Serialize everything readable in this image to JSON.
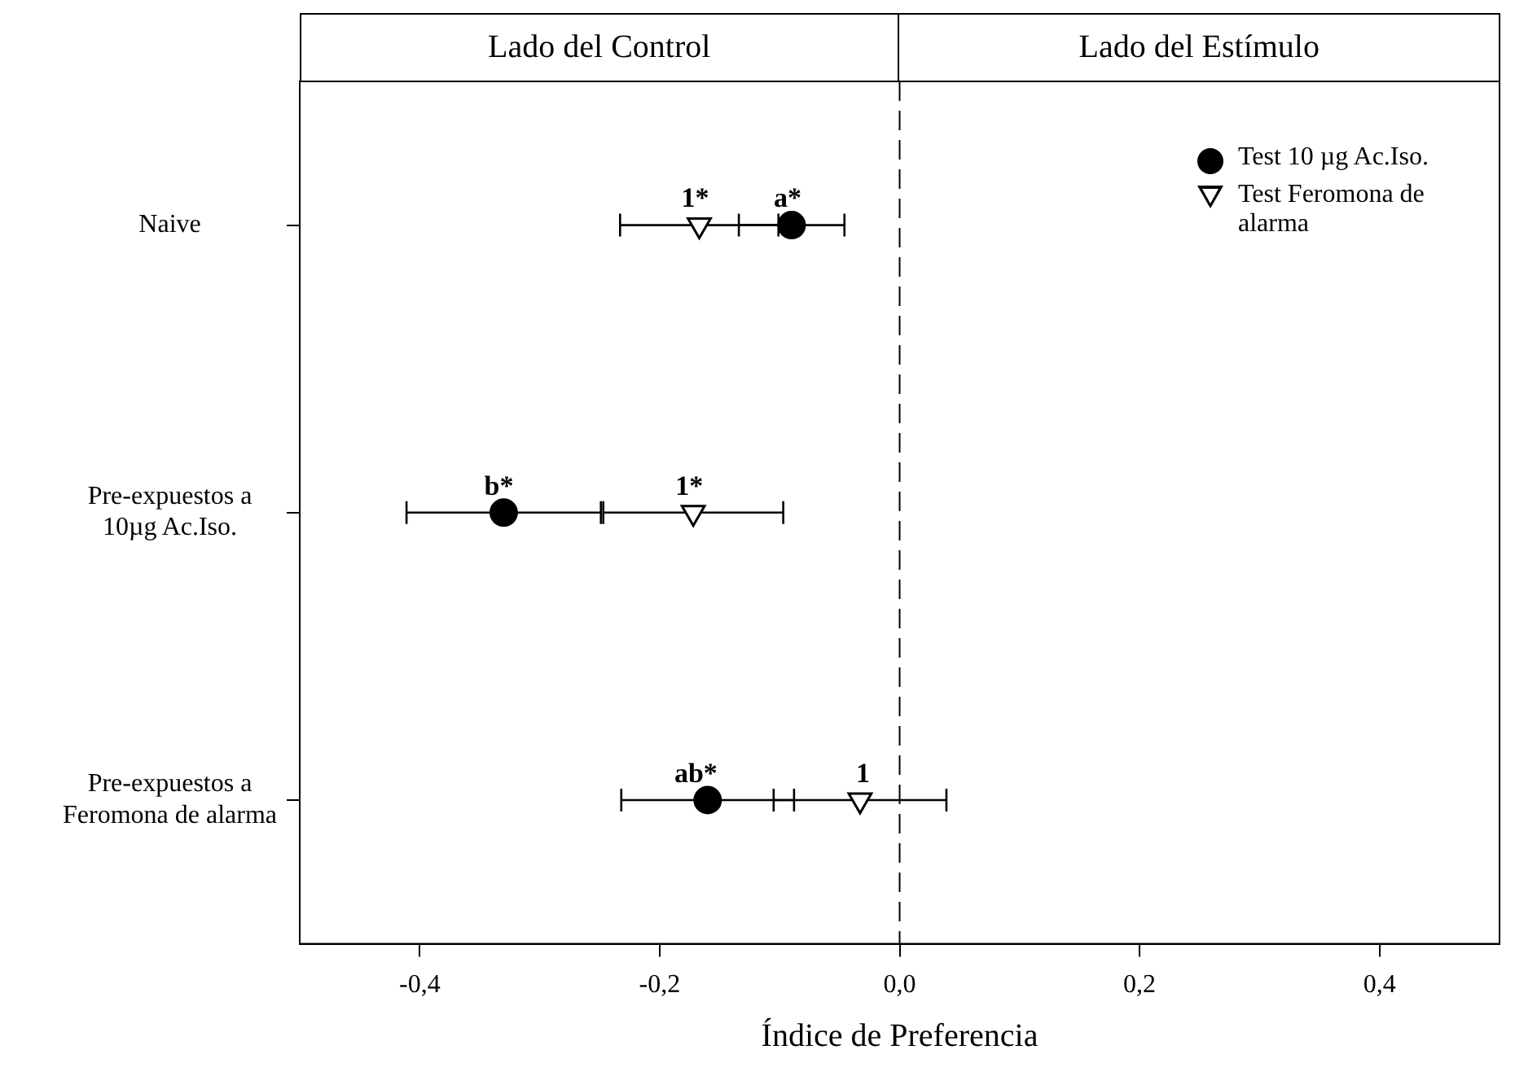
{
  "chart_data": {
    "type": "scatter",
    "orientation": "horizontal",
    "xlabel": "Índice de Preferencia",
    "categories": [
      "Naive",
      "Pre-expuestos a\n10µg Ac.Iso.",
      "Pre-expuestos a\nFeromona de alarma"
    ],
    "series": [
      {
        "name": "Test 10 µg Ac.Iso.",
        "color": "#000000",
        "marker": "circle",
        "values": [
          -0.09,
          -0.33,
          -0.16
        ],
        "errors": [
          0.044,
          0.081,
          0.072
        ]
      },
      {
        "name": "Test Feromona de alarma",
        "color": "#000000",
        "marker": "triangle",
        "values": [
          -0.167,
          -0.172,
          -0.033
        ],
        "errors": [
          0.066,
          0.075,
          0.072
        ]
      }
    ],
    "xlim": [
      -0.5,
      0.5
    ],
    "xticks": [
      {
        "value": -0.4,
        "label": "-0,4"
      },
      {
        "value": -0.2,
        "label": "-0,2"
      },
      {
        "value": 0,
        "label": "0,0"
      },
      {
        "value": 0.2,
        "label": "0,2"
      },
      {
        "value": 0.4,
        "label": "0,4"
      }
    ],
    "ref_lines": [
      {
        "axis": "x",
        "value": 0,
        "line_style": "dashed",
        "color": "#000000"
      }
    ],
    "legend": "top right",
    "grid": false,
    "annotations": [
      "Lado del Control",
      "Lado del Estímulo",
      {
        "text": "1*",
        "x": -0.167,
        "y": "Naive"
      },
      {
        "text": "a*",
        "x": -0.09,
        "y": "Naive"
      },
      {
        "text": "b*",
        "x": -0.33,
        "y": "Pre-expuestos a\n10µg Ac.Iso."
      },
      {
        "text": "1*",
        "x": -0.172,
        "y": "Pre-expuestos a\n10µg Ac.Iso."
      },
      {
        "text": "ab*",
        "x": -0.16,
        "y": "Pre-expuestos a\nFeromona de alarma"
      },
      {
        "text": "1",
        "x": -0.033,
        "y": "Pre-expuestos a\nFeromona de alarma"
      }
    ]
  }
}
